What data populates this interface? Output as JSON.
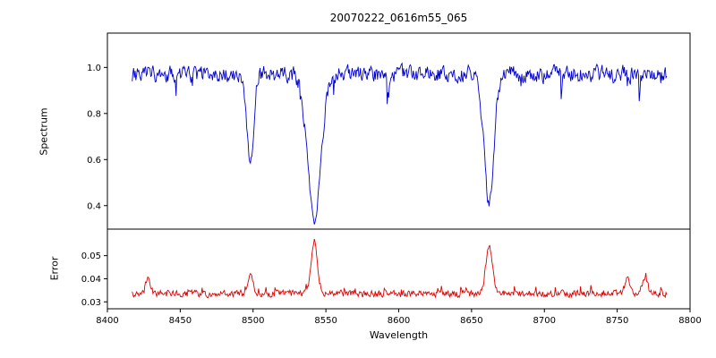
{
  "chart_data": {
    "type": "line",
    "title": "20070222_0616m55_065",
    "xlabel": "Wavelength",
    "grid": false,
    "legend": "none",
    "x_axis": {
      "min": 8400,
      "max": 8800,
      "ticks": [
        "8400",
        "8450",
        "8500",
        "8550",
        "8600",
        "8650",
        "8700",
        "8750",
        "8800"
      ]
    },
    "x_data_range": [
      8417,
      8784
    ],
    "noise_seed": 20070222,
    "panels": [
      {
        "name": "spectrum",
        "ylabel": "Spectrum",
        "color": "#0000cd",
        "ylim": [
          0.298,
          1.149
        ],
        "ticks": [
          "0.4",
          "0.6",
          "0.8",
          "1.0"
        ],
        "continuum": 0.97,
        "noise_amplitude": 0.032,
        "absorption_lines": [
          {
            "center": 8498,
            "depth": 0.4,
            "width": 2.2
          },
          {
            "center": 8542,
            "depth": 0.64,
            "width": 4.5
          },
          {
            "center": 8662,
            "depth": 0.56,
            "width": 3.2
          }
        ]
      },
      {
        "name": "error",
        "ylabel": "Error",
        "color": "#e00000",
        "ylim": [
          0.027,
          0.0615
        ],
        "ticks": [
          "0.03",
          "0.04",
          "0.05"
        ],
        "baseline": 0.0335,
        "noise_amplitude": 0.0013,
        "peaks": [
          {
            "center": 8428,
            "height": 0.006,
            "width": 1.8
          },
          {
            "center": 8498,
            "height": 0.0085,
            "width": 1.8
          },
          {
            "center": 8542,
            "height": 0.023,
            "width": 2.2
          },
          {
            "center": 8662,
            "height": 0.021,
            "width": 2.2
          },
          {
            "center": 8757,
            "height": 0.006,
            "width": 1.8
          },
          {
            "center": 8769,
            "height": 0.0075,
            "width": 1.8
          }
        ]
      }
    ]
  }
}
